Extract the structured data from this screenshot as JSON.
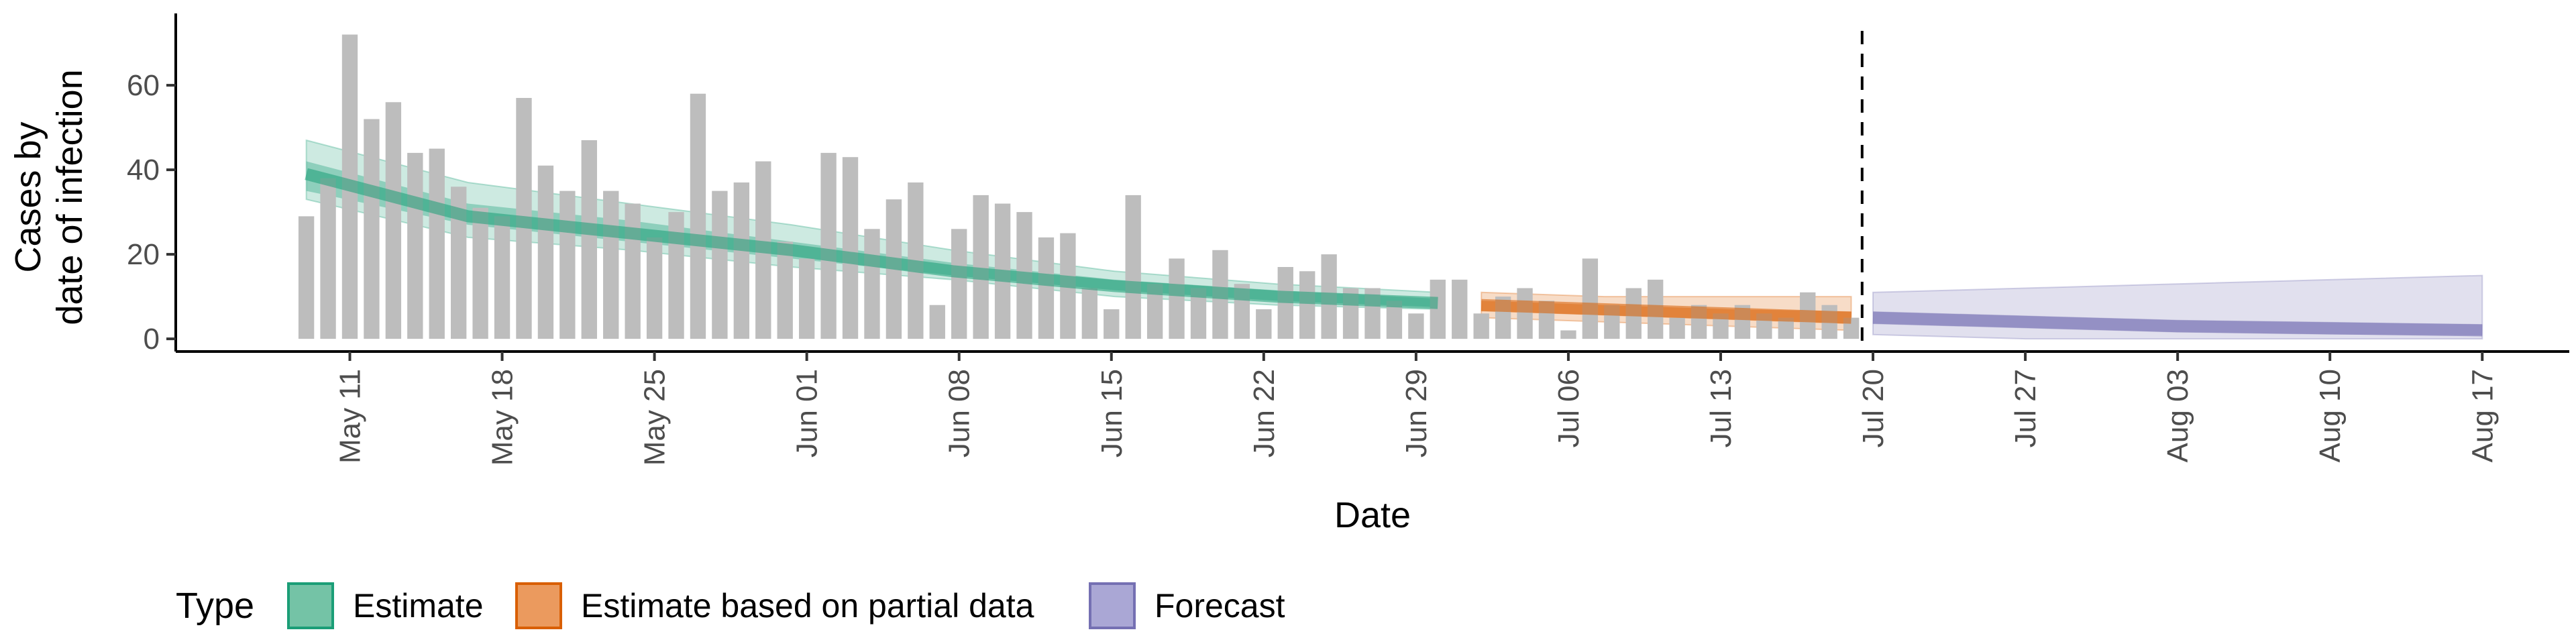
{
  "chart_data": {
    "type": "bar",
    "xlabel": "Date",
    "ylabel_lines": [
      "Cases by",
      "date of infection"
    ],
    "ylim": [
      -3,
      77
    ],
    "yticks": [
      0,
      20,
      40,
      60
    ],
    "grid": false,
    "legend_position": "bottom",
    "legend_title": "Type",
    "x_tick_labels": [
      "May 11",
      "May 18",
      "May 25",
      "Jun 01",
      "Jun 08",
      "Jun 15",
      "Jun 22",
      "Jun 29",
      "Jul 06",
      "Jul 13",
      "Jul 20",
      "Jul 27",
      "Aug 03",
      "Aug 10",
      "Aug 17"
    ],
    "x_range": [
      "2020-05-03",
      "2020-08-21"
    ],
    "bars_start_date": "2020-05-09",
    "reported_cases": [
      29,
      38,
      72,
      52,
      56,
      44,
      45,
      36,
      31,
      29,
      57,
      41,
      35,
      47,
      35,
      32,
      24,
      30,
      58,
      35,
      37,
      42,
      23,
      19,
      44,
      43,
      26,
      33,
      37,
      8,
      26,
      34,
      32,
      30,
      24,
      25,
      12,
      7,
      34,
      13,
      19,
      12,
      21,
      13,
      7,
      17,
      16,
      20,
      12,
      12,
      9,
      6,
      14,
      14,
      6,
      10,
      12,
      9,
      2,
      19,
      8,
      12,
      14,
      5,
      8,
      6,
      8,
      6,
      5,
      11,
      8,
      5
    ],
    "forecast_origin": "2020-07-19",
    "series": [
      {
        "name": "Estimate",
        "color": "#1b9e77",
        "start_date": "2020-05-09",
        "end_date": "2020-06-30",
        "median": [
          39,
          29,
          25,
          21,
          16,
          12.5,
          10,
          8.5
        ],
        "inner_band": [
          [
            35,
            42
          ],
          [
            27,
            32
          ],
          [
            23,
            28
          ],
          [
            19,
            23
          ],
          [
            15,
            18
          ],
          [
            11.5,
            14
          ],
          [
            9,
            11.5
          ],
          [
            7.5,
            9.5
          ]
        ],
        "outer_band": [
          [
            33,
            47
          ],
          [
            24,
            37
          ],
          [
            21,
            32
          ],
          [
            17,
            27
          ],
          [
            14,
            21
          ],
          [
            10,
            16
          ],
          [
            8,
            13
          ],
          [
            7,
            11
          ]
        ]
      },
      {
        "name": "Estimate based on partial data",
        "color": "#d95f02",
        "start_date": "2020-07-02",
        "end_date": "2020-07-19",
        "median": [
          8,
          7,
          6,
          5
        ],
        "inner_band": [
          [
            6.5,
            9
          ],
          [
            5.5,
            8
          ],
          [
            4.5,
            7
          ],
          [
            3.5,
            6.5
          ]
        ],
        "outer_band": [
          [
            5,
            11
          ],
          [
            4,
            10
          ],
          [
            3,
            10
          ],
          [
            2,
            10
          ]
        ]
      },
      {
        "name": "Forecast",
        "color": "#7570b3",
        "start_date": "2020-07-20",
        "end_date": "2020-08-17",
        "median": [
          5,
          4,
          3,
          2.5,
          2
        ],
        "inner_band": [
          [
            3.5,
            6.5
          ],
          [
            2.5,
            5.5
          ],
          [
            1.5,
            4.5
          ],
          [
            1,
            4
          ],
          [
            0.8,
            3.5
          ]
        ],
        "outer_band": [
          [
            1,
            11
          ],
          [
            0,
            12
          ],
          [
            0,
            13
          ],
          [
            0,
            14
          ],
          [
            0,
            15
          ]
        ]
      }
    ]
  }
}
